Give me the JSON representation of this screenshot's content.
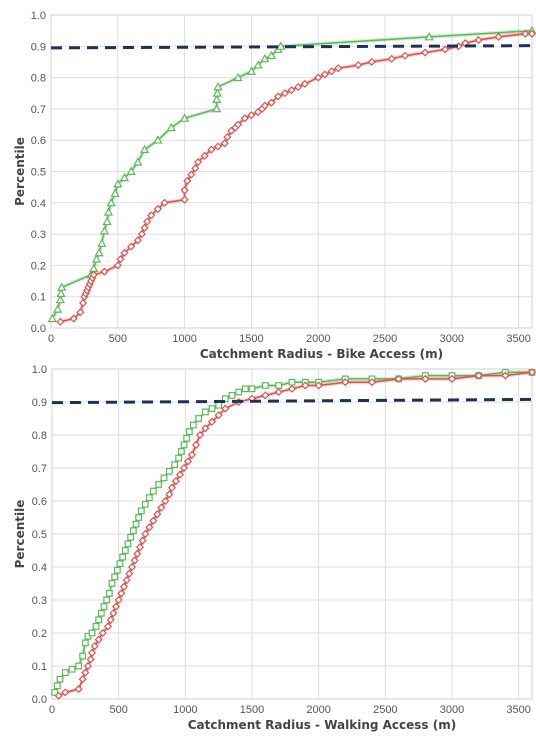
{
  "chart_data": [
    {
      "type": "line",
      "xlabel": "Catchment Radius - Bike Access (m)",
      "ylabel": "Percentile",
      "xlim": [
        0,
        3600
      ],
      "ylim": [
        0,
        1.0
      ],
      "xticks": [
        "0",
        "500",
        "1000",
        "1500",
        "2000",
        "2500",
        "3000",
        "3500"
      ],
      "yticks": [
        "0.0",
        "0.1",
        "0.2",
        "0.3",
        "0.4",
        "0.5",
        "0.6",
        "0.7",
        "0.8",
        "0.9",
        "1.0"
      ],
      "grid": true,
      "reference_line": {
        "style": "dashed",
        "color": "#1b3358",
        "x": [
          0,
          3600
        ],
        "y": [
          0.895,
          0.902
        ]
      },
      "series": [
        {
          "color": "#5cb85c",
          "marker": "triangle",
          "x": [
            10,
            50,
            70,
            75,
            80,
            300,
            320,
            340,
            360,
            380,
            400,
            420,
            430,
            450,
            480,
            500,
            550,
            600,
            650,
            700,
            800,
            900,
            1000,
            1240,
            1240,
            1245,
            1250,
            1400,
            1500,
            1550,
            1600,
            1650,
            1700,
            1720,
            2830,
            3600
          ],
          "y": [
            0.03,
            0.06,
            0.09,
            0.11,
            0.13,
            0.17,
            0.19,
            0.22,
            0.24,
            0.27,
            0.31,
            0.34,
            0.37,
            0.4,
            0.43,
            0.46,
            0.48,
            0.5,
            0.53,
            0.57,
            0.6,
            0.64,
            0.67,
            0.7,
            0.73,
            0.75,
            0.77,
            0.8,
            0.82,
            0.84,
            0.86,
            0.87,
            0.89,
            0.9,
            0.93,
            0.95
          ]
        },
        {
          "color": "#d9534f",
          "marker": "diamond",
          "x": [
            70,
            170,
            220,
            240,
            250,
            260,
            270,
            280,
            290,
            300,
            310,
            320,
            400,
            500,
            520,
            550,
            600,
            650,
            680,
            700,
            720,
            750,
            800,
            850,
            1000,
            1000,
            1020,
            1050,
            1080,
            1100,
            1150,
            1200,
            1250,
            1300,
            1320,
            1350,
            1380,
            1400,
            1450,
            1500,
            1550,
            1580,
            1600,
            1650,
            1700,
            1750,
            1800,
            1850,
            1900,
            2000,
            2050,
            2100,
            2150,
            2300,
            2400,
            2550,
            2650,
            2800,
            2950,
            3050,
            3100,
            3200,
            3350,
            3550,
            3600
          ],
          "y": [
            0.02,
            0.03,
            0.05,
            0.08,
            0.1,
            0.11,
            0.12,
            0.13,
            0.14,
            0.15,
            0.16,
            0.17,
            0.18,
            0.2,
            0.22,
            0.24,
            0.26,
            0.28,
            0.3,
            0.32,
            0.34,
            0.36,
            0.38,
            0.4,
            0.41,
            0.44,
            0.47,
            0.49,
            0.51,
            0.53,
            0.55,
            0.57,
            0.58,
            0.59,
            0.61,
            0.63,
            0.64,
            0.65,
            0.67,
            0.68,
            0.69,
            0.7,
            0.71,
            0.72,
            0.74,
            0.75,
            0.76,
            0.77,
            0.78,
            0.8,
            0.81,
            0.82,
            0.83,
            0.84,
            0.85,
            0.86,
            0.87,
            0.88,
            0.89,
            0.9,
            0.91,
            0.92,
            0.93,
            0.94,
            0.94
          ]
        }
      ]
    },
    {
      "type": "line",
      "xlabel": "Catchment Radius - Walking Access (m)",
      "ylabel": "Percentile",
      "xlim": [
        0,
        3600
      ],
      "ylim": [
        0,
        1.0
      ],
      "xticks": [
        "0",
        "500",
        "1000",
        "1500",
        "2000",
        "2500",
        "3000",
        "3500"
      ],
      "yticks": [
        "0.0",
        "0.1",
        "0.2",
        "0.3",
        "0.4",
        "0.5",
        "0.6",
        "0.7",
        "0.8",
        "0.9",
        "1.0"
      ],
      "grid": true,
      "reference_line": {
        "style": "dashed",
        "color": "#1b3358",
        "x": [
          0,
          3600
        ],
        "y": [
          0.898,
          0.908
        ]
      },
      "series": [
        {
          "color": "#5cb85c",
          "marker": "square",
          "x": [
            20,
            40,
            60,
            100,
            150,
            200,
            230,
            250,
            270,
            300,
            330,
            350,
            370,
            390,
            410,
            430,
            450,
            470,
            490,
            510,
            530,
            550,
            570,
            590,
            610,
            630,
            650,
            670,
            700,
            730,
            760,
            800,
            840,
            880,
            920,
            950,
            970,
            990,
            1010,
            1030,
            1060,
            1100,
            1150,
            1200,
            1250,
            1300,
            1350,
            1400,
            1450,
            1500,
            1600,
            1700,
            1800,
            1900,
            2000,
            2200,
            2400,
            2600,
            2800,
            3000,
            3200,
            3400,
            3600
          ],
          "y": [
            0.02,
            0.04,
            0.06,
            0.08,
            0.09,
            0.1,
            0.13,
            0.17,
            0.19,
            0.2,
            0.22,
            0.24,
            0.26,
            0.28,
            0.3,
            0.32,
            0.35,
            0.37,
            0.39,
            0.41,
            0.43,
            0.45,
            0.47,
            0.49,
            0.51,
            0.53,
            0.55,
            0.57,
            0.59,
            0.61,
            0.63,
            0.65,
            0.67,
            0.69,
            0.71,
            0.73,
            0.75,
            0.77,
            0.79,
            0.81,
            0.83,
            0.85,
            0.87,
            0.88,
            0.89,
            0.91,
            0.92,
            0.93,
            0.94,
            0.94,
            0.95,
            0.95,
            0.96,
            0.96,
            0.96,
            0.97,
            0.97,
            0.97,
            0.98,
            0.98,
            0.98,
            0.99,
            0.99
          ],
          "note": ""
        },
        {
          "color": "#d9534f",
          "marker": "diamond",
          "x": [
            50,
            100,
            200,
            230,
            250,
            270,
            290,
            300,
            320,
            350,
            380,
            420,
            440,
            460,
            480,
            500,
            520,
            540,
            560,
            580,
            600,
            620,
            640,
            660,
            680,
            700,
            730,
            760,
            790,
            820,
            850,
            880,
            900,
            930,
            960,
            990,
            1020,
            1050,
            1080,
            1110,
            1150,
            1200,
            1250,
            1300,
            1400,
            1500,
            1600,
            1700,
            1800,
            1900,
            2000,
            2200,
            2400,
            2600,
            2800,
            3000,
            3200,
            3400,
            3600
          ],
          "y": [
            0.01,
            0.02,
            0.03,
            0.06,
            0.08,
            0.1,
            0.12,
            0.14,
            0.16,
            0.18,
            0.2,
            0.22,
            0.24,
            0.26,
            0.28,
            0.3,
            0.32,
            0.34,
            0.36,
            0.38,
            0.4,
            0.42,
            0.44,
            0.46,
            0.48,
            0.5,
            0.52,
            0.54,
            0.56,
            0.58,
            0.6,
            0.62,
            0.64,
            0.66,
            0.68,
            0.7,
            0.72,
            0.74,
            0.77,
            0.8,
            0.82,
            0.84,
            0.86,
            0.88,
            0.9,
            0.91,
            0.92,
            0.93,
            0.94,
            0.95,
            0.95,
            0.96,
            0.96,
            0.97,
            0.97,
            0.97,
            0.98,
            0.98,
            0.99
          ]
        }
      ]
    }
  ]
}
